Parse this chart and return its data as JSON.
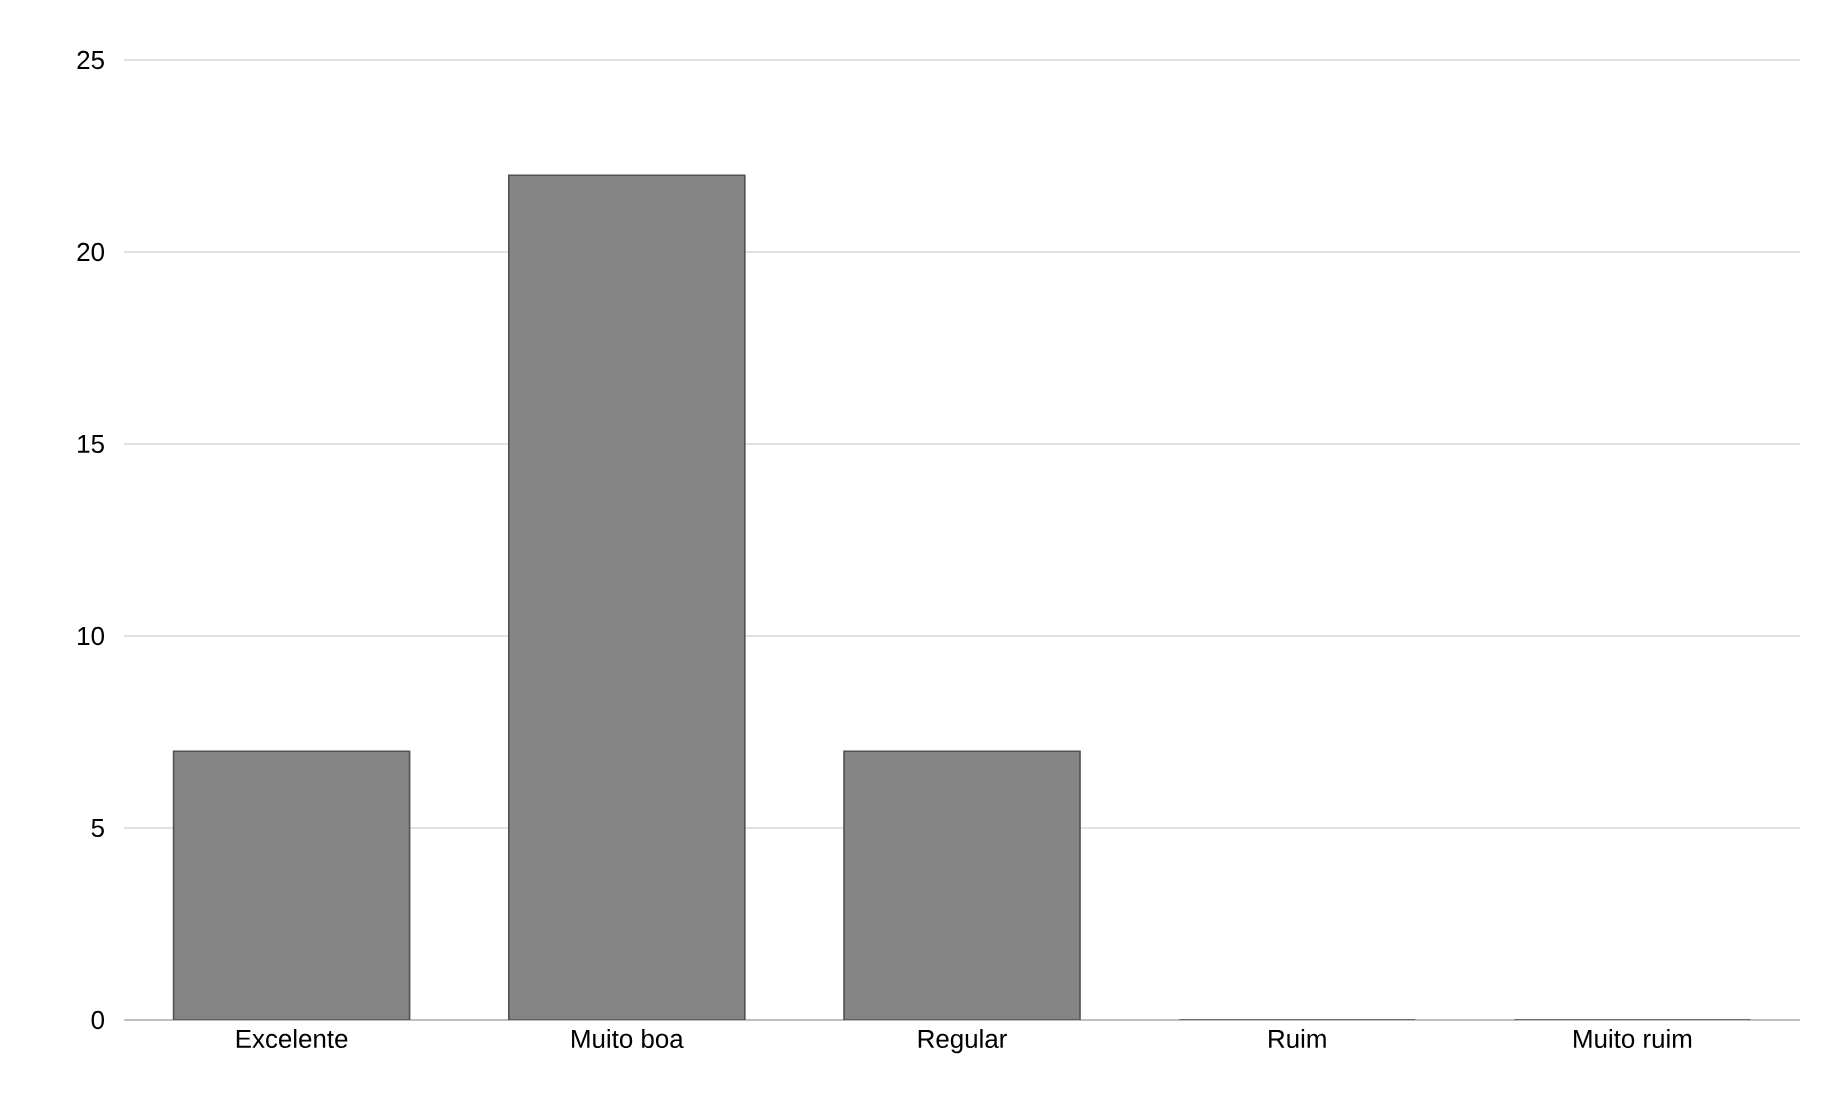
{
  "chart_data": {
    "type": "bar",
    "categories": [
      "Excelente",
      "Muito boa",
      "Regular",
      "Ruim",
      "Muito ruim"
    ],
    "values": [
      7,
      22,
      7,
      0,
      0
    ],
    "color": "#858585",
    "ylim": [
      0,
      25
    ],
    "yticks": [
      0,
      5,
      10,
      15,
      20,
      25
    ],
    "grid": "y"
  }
}
